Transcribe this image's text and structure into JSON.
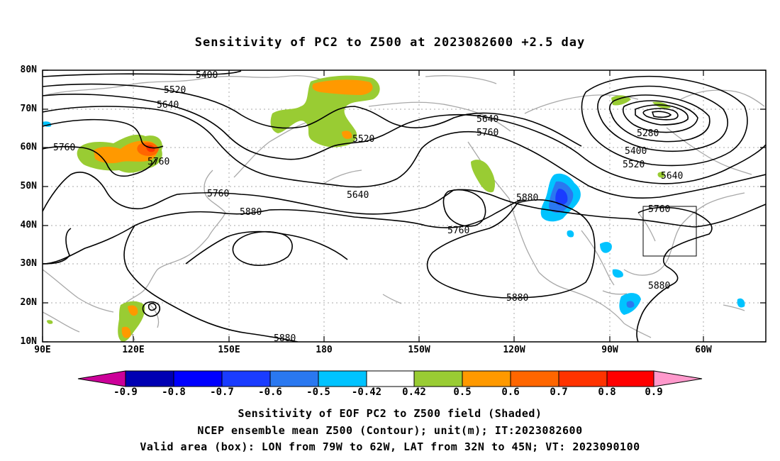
{
  "title": "Sensitivity of PC2 to Z500 at 2023082600 +2.5 day",
  "lat_labels": [
    "80N",
    "70N",
    "60N",
    "50N",
    "40N",
    "30N",
    "20N",
    "10N"
  ],
  "lon_labels": [
    "90E",
    "120E",
    "150E",
    "180",
    "150W",
    "120W",
    "90W",
    "60W"
  ],
  "contour_labels": [
    "5400",
    "5520",
    "5640",
    "5760",
    "5760",
    "5760",
    "5880",
    "5640",
    "5760",
    "5640",
    "5520",
    "5760",
    "5880",
    "5880",
    "5880",
    "5280",
    "5400",
    "5520",
    "5640",
    "5760",
    "5880"
  ],
  "colorbar": {
    "labels": [
      "-0.9",
      "-0.8",
      "-0.7",
      "-0.6",
      "-0.5",
      "-0.42",
      "0.42",
      "0.5",
      "0.6",
      "0.7",
      "0.8",
      "0.9"
    ],
    "colors": [
      "#cc0099",
      "#0000b3",
      "#0000ff",
      "#1a3cff",
      "#2a78f0",
      "#00c3ff",
      "#ffffff",
      "#99cc33",
      "#ff9900",
      "#ff6600",
      "#ff3300",
      "#ff0000",
      "#ff99cc"
    ]
  },
  "caption_1": "Sensitivity of EOF PC2 to Z500 field (Shaded)",
  "caption_2": "NCEP ensemble mean Z500 (Contour); unit(m); IT:2023082600",
  "caption_3": "Valid area (box): LON from 79W to 62W, LAT from 32N to 45N; VT: 2023090100"
}
